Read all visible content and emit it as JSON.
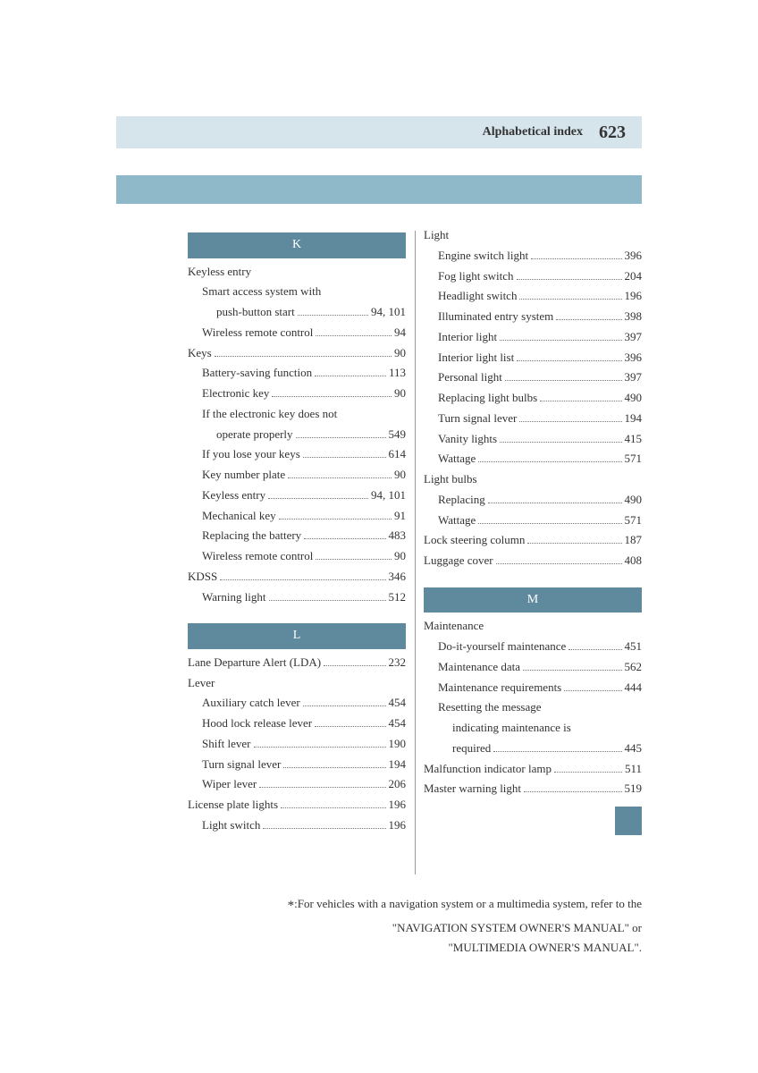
{
  "header": {
    "title": "Alphabetical index",
    "page_number": "623"
  },
  "left_column": [
    {
      "type": "letter",
      "text": "K"
    },
    {
      "type": "heading",
      "text": "Keyless entry"
    },
    {
      "type": "sub",
      "label": "Smart access system with",
      "nopage": true
    },
    {
      "type": "subsub",
      "label": "push-button start",
      "page": "94, 101"
    },
    {
      "type": "sub",
      "label": "Wireless remote control",
      "page": "94"
    },
    {
      "type": "main",
      "label": "Keys",
      "page": "90"
    },
    {
      "type": "sub",
      "label": "Battery-saving function",
      "page": "113"
    },
    {
      "type": "sub",
      "label": "Electronic key",
      "page": "90"
    },
    {
      "type": "sub",
      "label": "If the electronic key does not",
      "nopage": true
    },
    {
      "type": "subsub",
      "label": "operate properly",
      "page": "549"
    },
    {
      "type": "sub",
      "label": "If you lose your keys",
      "page": "614"
    },
    {
      "type": "sub",
      "label": "Key number plate",
      "page": "90"
    },
    {
      "type": "sub",
      "label": "Keyless entry",
      "page": "94, 101"
    },
    {
      "type": "sub",
      "label": "Mechanical key",
      "page": "91"
    },
    {
      "type": "sub",
      "label": "Replacing the battery",
      "page": "483"
    },
    {
      "type": "sub",
      "label": "Wireless remote control",
      "page": "90"
    },
    {
      "type": "main",
      "label": "KDSS",
      "page": "346"
    },
    {
      "type": "sub",
      "label": "Warning light",
      "page": "512"
    },
    {
      "type": "spacer"
    },
    {
      "type": "letter",
      "text": "L"
    },
    {
      "type": "main",
      "label": "Lane Departure Alert (LDA)",
      "page": "232"
    },
    {
      "type": "heading",
      "text": "Lever"
    },
    {
      "type": "sub",
      "label": "Auxiliary catch lever",
      "page": "454"
    },
    {
      "type": "sub",
      "label": "Hood lock release lever",
      "page": "454"
    },
    {
      "type": "sub",
      "label": "Shift lever",
      "page": "190"
    },
    {
      "type": "sub",
      "label": "Turn signal lever",
      "page": "194"
    },
    {
      "type": "sub",
      "label": "Wiper lever",
      "page": "206"
    },
    {
      "type": "main",
      "label": "License plate lights",
      "page": "196"
    },
    {
      "type": "sub",
      "label": "Light switch",
      "page": "196"
    }
  ],
  "right_column": [
    {
      "type": "heading",
      "text": "Light"
    },
    {
      "type": "sub",
      "label": "Engine switch light",
      "page": "396"
    },
    {
      "type": "sub",
      "label": "Fog light switch",
      "page": "204"
    },
    {
      "type": "sub",
      "label": "Headlight switch",
      "page": "196"
    },
    {
      "type": "sub",
      "label": "Illuminated entry system",
      "page": "398"
    },
    {
      "type": "sub",
      "label": "Interior light",
      "page": "397"
    },
    {
      "type": "sub",
      "label": "Interior light list",
      "page": "396"
    },
    {
      "type": "sub",
      "label": "Personal light",
      "page": "397"
    },
    {
      "type": "sub",
      "label": "Replacing light bulbs",
      "page": "490"
    },
    {
      "type": "sub",
      "label": "Turn signal lever",
      "page": "194"
    },
    {
      "type": "sub",
      "label": "Vanity lights",
      "page": "415"
    },
    {
      "type": "sub",
      "label": "Wattage",
      "page": "571"
    },
    {
      "type": "heading",
      "text": "Light bulbs"
    },
    {
      "type": "sub",
      "label": "Replacing",
      "page": "490"
    },
    {
      "type": "sub",
      "label": "Wattage",
      "page": "571"
    },
    {
      "type": "main",
      "label": "Lock steering column",
      "page": "187"
    },
    {
      "type": "main",
      "label": "Luggage cover",
      "page": "408"
    },
    {
      "type": "spacer"
    },
    {
      "type": "letter",
      "text": "M"
    },
    {
      "type": "heading",
      "text": "Maintenance"
    },
    {
      "type": "sub",
      "label": "Do-it-yourself maintenance",
      "page": "451"
    },
    {
      "type": "sub",
      "label": "Maintenance data",
      "page": "562"
    },
    {
      "type": "sub",
      "label": "Maintenance requirements",
      "page": "444"
    },
    {
      "type": "sub",
      "label": "Resetting the message",
      "nopage": true
    },
    {
      "type": "subsub",
      "label": "indicating maintenance is",
      "nopage": true
    },
    {
      "type": "subsub",
      "label": "required",
      "page": "445"
    },
    {
      "type": "main",
      "label": "Malfunction indicator lamp",
      "page": "511"
    },
    {
      "type": "main",
      "label": "Master warning light",
      "page": "519"
    }
  ],
  "footnote": {
    "line1": ":For vehicles with a navigation system or a multimedia system, refer to the",
    "line2": "\"NAVIGATION SYSTEM OWNER'S MANUAL\" or",
    "line3": "\"MULTIMEDIA OWNER'S MANUAL\"."
  },
  "colors": {
    "header_bg": "#d6e5ec",
    "bar_bg": "#8fb9c9",
    "letter_bg": "#5f8a9e"
  }
}
